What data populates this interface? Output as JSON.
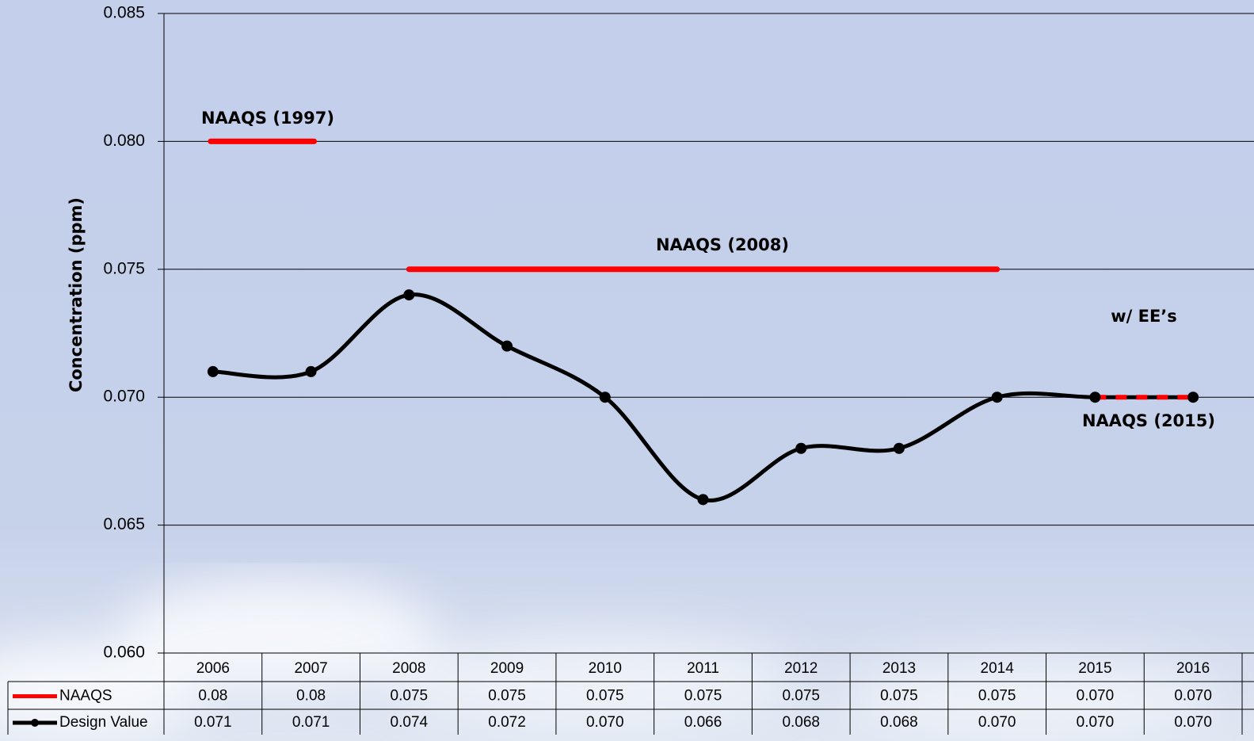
{
  "chart_data": {
    "type": "line",
    "y_label": "Concentration (ppm)",
    "categories": [
      "2006",
      "2007",
      "2008",
      "2009",
      "2010",
      "2011",
      "2012",
      "2013",
      "2014",
      "2015",
      "2016"
    ],
    "series": [
      {
        "name": "NAAQS",
        "color": "#ff0000",
        "values": [
          0.08,
          0.08,
          0.075,
          0.075,
          0.075,
          0.075,
          0.075,
          0.075,
          0.075,
          0.07,
          0.07
        ],
        "value_labels": [
          "0.08",
          "0.08",
          "0.075",
          "0.075",
          "0.075",
          "0.075",
          "0.075",
          "0.075",
          "0.075",
          "0.070",
          "0.070"
        ]
      },
      {
        "name": "Design Value",
        "color": "#000000",
        "values": [
          0.071,
          0.071,
          0.074,
          0.072,
          0.07,
          0.066,
          0.068,
          0.068,
          0.07,
          0.07,
          0.07
        ],
        "value_labels": [
          "0.071",
          "0.071",
          "0.074",
          "0.072",
          "0.070",
          "0.066",
          "0.068",
          "0.068",
          "0.070",
          "0.070",
          "0.070"
        ]
      }
    ],
    "annotations": [
      "NAAQS (1997)",
      "NAAQS (2008)",
      "NAAQS (2015)",
      "w/ EE’s"
    ],
    "ylim": [
      0.06,
      0.085
    ],
    "yticks": [
      {
        "value": 0.06,
        "label": "0.060"
      },
      0.065,
      {
        "value": 0.07,
        "label": "0.070"
      },
      0.075,
      {
        "value": 0.08,
        "label": "0.080"
      },
      0.085
    ],
    "grid": true
  }
}
